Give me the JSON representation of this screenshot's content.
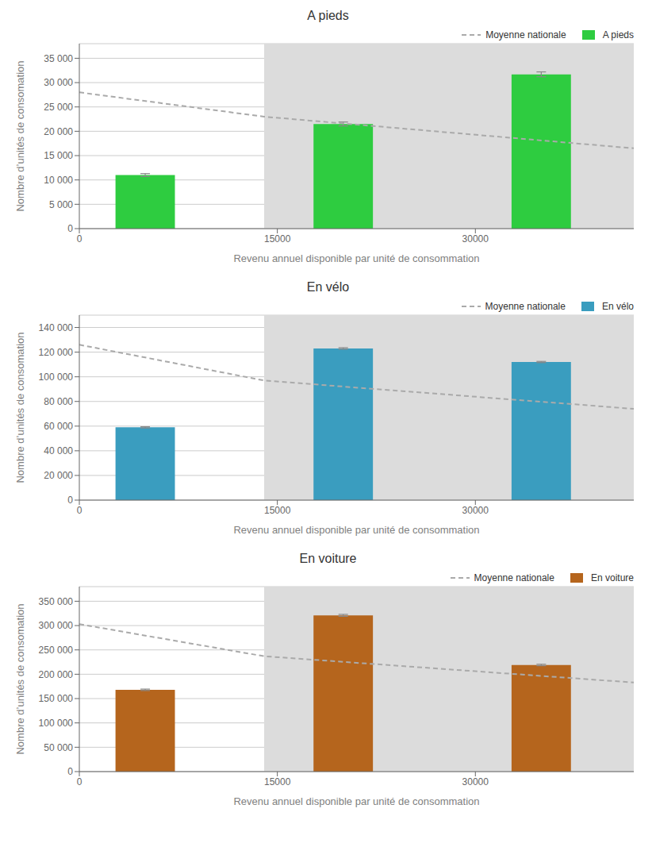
{
  "chart_data": [
    {
      "type": "bar",
      "title": "A pieds",
      "x_label": "Revenu annuel disponible par unité de consommation",
      "y_label": "Nombre d’unités de consomation",
      "series": [
        {
          "name": "Moyenne nationale",
          "type": "line",
          "color": "#aaaaaa",
          "line_style": "dashed",
          "x": [
            0,
            14000,
            42000
          ],
          "values": [
            28000,
            23000,
            16500
          ]
        },
        {
          "name": "A pieds",
          "type": "bar",
          "color": "#2ecc40",
          "x": [
            5000,
            20000,
            35000
          ],
          "values": [
            11000,
            21500,
            31700
          ],
          "errors": [
            300,
            400,
            500
          ]
        }
      ],
      "shade": {
        "x": [
          14000,
          42000
        ],
        "color": "#dcdcdc"
      },
      "xlim": [
        0,
        42000
      ],
      "xticks": [
        0,
        15000,
        30000
      ],
      "ylim": [
        0,
        38000
      ],
      "yticks": [
        0,
        {
          "value": 5000,
          "label": "5 000"
        },
        {
          "value": 10000,
          "label": "10 000"
        },
        {
          "value": 15000,
          "label": "15 000"
        },
        {
          "value": 20000,
          "label": "20 000"
        },
        {
          "value": 25000,
          "label": "25 000"
        },
        {
          "value": 30000,
          "label": "30 000"
        },
        {
          "value": 35000,
          "label": "35 000"
        }
      ],
      "grid": true,
      "legend": "upper right"
    },
    {
      "type": "bar",
      "title": "En vélo",
      "x_label": "Revenu annuel disponible par unité de consommation",
      "y_label": "Nombre d’unités de consomation",
      "series": [
        {
          "name": "Moyenne nationale",
          "type": "line",
          "color": "#aaaaaa",
          "line_style": "dashed",
          "x": [
            0,
            14000,
            42000
          ],
          "values": [
            126000,
            97000,
            74000
          ]
        },
        {
          "name": "En vélo",
          "type": "bar",
          "color": "#3a9dbf",
          "x": [
            5000,
            20000,
            35000
          ],
          "values": [
            59000,
            123000,
            112000
          ],
          "errors": [
            500,
            600,
            500
          ]
        }
      ],
      "shade": {
        "x": [
          14000,
          42000
        ],
        "color": "#dcdcdc"
      },
      "xlim": [
        0,
        42000
      ],
      "xticks": [
        0,
        15000,
        30000
      ],
      "ylim": [
        0,
        150000
      ],
      "yticks": [
        0,
        {
          "value": 20000,
          "label": "20 000"
        },
        {
          "value": 40000,
          "label": "40 000"
        },
        {
          "value": 60000,
          "label": "60 000"
        },
        {
          "value": 80000,
          "label": "80 000"
        },
        {
          "value": 100000,
          "label": "100 000"
        },
        {
          "value": 120000,
          "label": "120 000"
        },
        {
          "value": 140000,
          "label": "140 000"
        }
      ],
      "grid": true,
      "legend": "upper right"
    },
    {
      "type": "bar",
      "title": "En voiture",
      "x_label": "Revenu annuel disponible par unité de consommation",
      "y_label": "Nombre d’unités de consomation",
      "series": [
        {
          "name": "Moyenne nationale",
          "type": "line",
          "color": "#aaaaaa",
          "line_style": "dashed",
          "x": [
            0,
            14000,
            42000
          ],
          "values": [
            303000,
            237000,
            183000
          ]
        },
        {
          "name": "En voiture",
          "type": "bar",
          "color": "#b5651d",
          "x": [
            5000,
            20000,
            35000
          ],
          "values": [
            168000,
            321000,
            219000
          ],
          "errors": [
            1500,
            2000,
            1500
          ]
        }
      ],
      "shade": {
        "x": [
          14000,
          42000
        ],
        "color": "#dcdcdc"
      },
      "xlim": [
        0,
        42000
      ],
      "xticks": [
        0,
        15000,
        30000
      ],
      "ylim": [
        0,
        380000
      ],
      "yticks": [
        0,
        {
          "value": 50000,
          "label": "50 000"
        },
        {
          "value": 100000,
          "label": "100 000"
        },
        {
          "value": 150000,
          "label": "150 000"
        },
        {
          "value": 200000,
          "label": "200 000"
        },
        {
          "value": 250000,
          "label": "250 000"
        },
        {
          "value": 300000,
          "label": "300 000"
        },
        {
          "value": 350000,
          "label": "350 000"
        }
      ],
      "grid": true,
      "legend": "upper right"
    }
  ]
}
